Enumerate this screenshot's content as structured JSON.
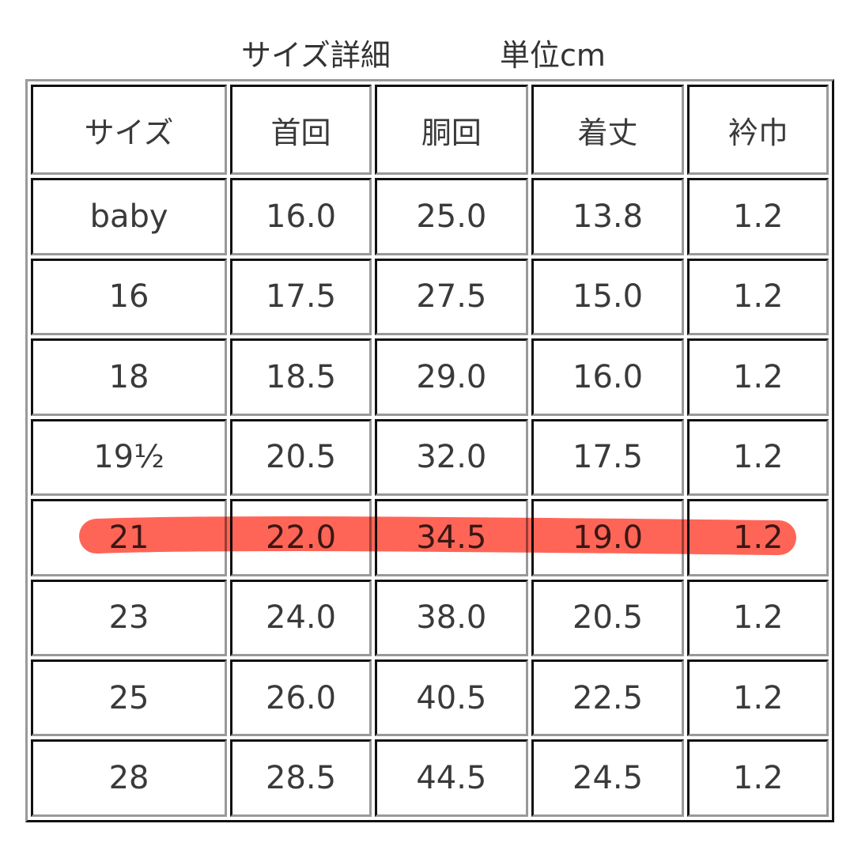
{
  "title": {
    "label": "サイズ詳細",
    "unit": "単位cm"
  },
  "table": {
    "headers": [
      "サイズ",
      "首回",
      "胴回",
      "着丈",
      "衿巾"
    ],
    "rows": [
      [
        "baby",
        "16.0",
        "25.0",
        "13.8",
        "1.2"
      ],
      [
        "16",
        "17.5",
        "27.5",
        "15.0",
        "1.2"
      ],
      [
        "18",
        "18.5",
        "29.0",
        "16.0",
        "1.2"
      ],
      [
        "19½",
        "20.5",
        "32.0",
        "17.5",
        "1.2"
      ],
      [
        "21",
        "22.0",
        "34.5",
        "19.0",
        "1.2"
      ],
      [
        "23",
        "24.0",
        "38.0",
        "20.5",
        "1.2"
      ],
      [
        "25",
        "26.0",
        "40.5",
        "22.5",
        "1.2"
      ],
      [
        "28",
        "28.5",
        "44.5",
        "24.5",
        "1.2"
      ]
    ],
    "highlighted_row": "21",
    "highlight_color": "#ff4a3a"
  }
}
